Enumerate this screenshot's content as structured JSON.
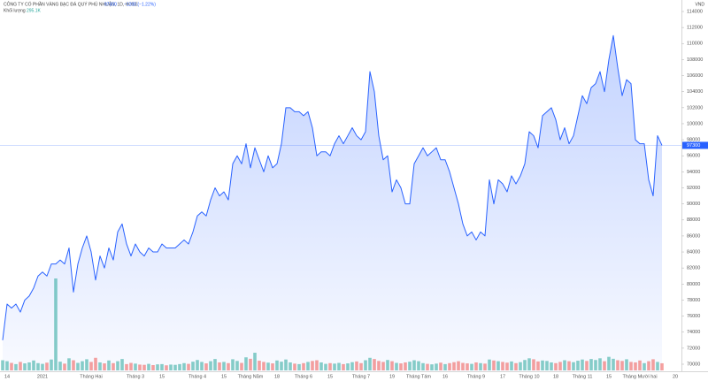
{
  "chart_data": {
    "type": "area",
    "title": "CÔNG TY CỔ PHẦN VÀNG BẠC ĐÁ QUÝ PHÚ NHUẬN, 1D, HOSE",
    "change": "−1200 (−1.22%)",
    "currency": "VND",
    "categories": [
      null,
      "14",
      null,
      null,
      null,
      null,
      null,
      null,
      null,
      "2021",
      null,
      null,
      null,
      null,
      null,
      null,
      null,
      null,
      null,
      null,
      "Tháng Hai",
      null,
      null,
      null,
      null,
      null,
      null,
      null,
      null,
      null,
      "Tháng 3",
      null,
      null,
      null,
      null,
      null,
      "15",
      null,
      null,
      null,
      null,
      null,
      null,
      null,
      "Tháng 4",
      null,
      null,
      null,
      null,
      null,
      "15",
      null,
      null,
      null,
      null,
      null,
      "Tháng Năm",
      null,
      null,
      null,
      null,
      null,
      "18",
      null,
      null,
      null,
      null,
      null,
      "Tháng 6",
      null,
      null,
      null,
      null,
      null,
      "15",
      null,
      null,
      null,
      null,
      null,
      null,
      "Tháng 7",
      null,
      null,
      null,
      null,
      null,
      null,
      "19",
      null,
      null,
      null,
      null,
      null,
      "Tháng Tám",
      null,
      null,
      null,
      null,
      null,
      "16",
      null,
      null,
      null,
      null,
      null,
      null,
      "Tháng 9",
      null,
      null,
      null,
      null,
      null,
      "17",
      null,
      null,
      null,
      null,
      null,
      "Tháng 10",
      null,
      null,
      null,
      null,
      null,
      "18",
      null,
      null,
      null,
      null,
      null,
      "Tháng 11",
      null,
      null,
      null,
      null,
      null,
      "15",
      null,
      null,
      null,
      null,
      null,
      null,
      "Tháng Mười hai",
      null,
      null,
      null,
      null,
      null,
      null,
      null,
      "20"
    ],
    "series": [
      {
        "color": "#2962ff",
        "values": [
          73000,
          77500,
          77000,
          77500,
          76500,
          78000,
          78500,
          79500,
          81000,
          81500,
          81000,
          82500,
          82500,
          83000,
          82500,
          84500,
          79000,
          82500,
          84500,
          86000,
          84000,
          80500,
          83500,
          82000,
          84500,
          83000,
          86500,
          87500,
          85000,
          83500,
          85000,
          84000,
          83500,
          84500,
          84000,
          84000,
          85000,
          84500,
          84500,
          84500,
          85000,
          85500,
          85000,
          86500,
          88500,
          89000,
          88500,
          90500,
          92000,
          91000,
          91500,
          90500,
          95000,
          96000,
          95000,
          97500,
          94500,
          97000,
          95500,
          94000,
          96000,
          94500,
          95000,
          97500,
          102000,
          102000,
          101500,
          101500,
          101000,
          101500,
          99500,
          96000,
          96500,
          96500,
          96000,
          97500,
          98500,
          97500,
          98500,
          99500,
          98500,
          98000,
          99000,
          106500,
          104000,
          98500,
          95500,
          96000,
          91500,
          93000,
          92000,
          90000,
          90000,
          95000,
          96000,
          97000,
          96000,
          96500,
          97000,
          95500,
          95500,
          94000,
          92000,
          90000,
          87500,
          86000,
          86500,
          85500,
          86500,
          86000,
          93000,
          90000,
          93000,
          92500,
          91500,
          93500,
          92500,
          93500,
          95000,
          99000,
          98500,
          97000,
          101000,
          101500,
          102000,
          100500,
          98000,
          99500,
          97500,
          98500,
          101000,
          103500,
          102500,
          104500,
          105000,
          106500,
          104000,
          108000,
          111000,
          107000,
          103500,
          105500,
          105000,
          98000,
          97500,
          97500,
          93000,
          91000,
          98500,
          97300,
          null,
          null,
          null
        ]
      }
    ],
    "volume": {
      "name": "Khối lượng",
      "current_label": "295.1K",
      "up_color": "#26a69a",
      "down_color": "#ef5350",
      "values": [
        420000,
        380000,
        310000,
        260000,
        350000,
        290000,
        330000,
        410000,
        300000,
        270000,
        320000,
        450000,
        3800000,
        360000,
        280000,
        500000,
        420000,
        310000,
        380000,
        460000,
        350000,
        520000,
        330000,
        290000,
        410000,
        300000,
        380000,
        470000,
        260000,
        310000,
        280000,
        240000,
        230000,
        270000,
        220000,
        250000,
        260000,
        210000,
        240000,
        230000,
        260000,
        300000,
        270000,
        360000,
        430000,
        350000,
        290000,
        380000,
        470000,
        330000,
        350000,
        300000,
        460000,
        390000,
        310000,
        540000,
        480000,
        730000,
        400000,
        350000,
        320000,
        290000,
        410000,
        360000,
        450000,
        330000,
        280000,
        260000,
        300000,
        350000,
        390000,
        420000,
        330000,
        270000,
        300000,
        280000,
        310000,
        260000,
        290000,
        340000,
        370000,
        300000,
        420000,
        520000,
        470000,
        390000,
        350000,
        430000,
        380000,
        310000,
        290000,
        330000,
        360000,
        420000,
        380000,
        300000,
        270000,
        250000,
        280000,
        320000,
        260000,
        300000,
        340000,
        380000,
        310000,
        290000,
        270000,
        330000,
        300000,
        280000,
        450000,
        410000,
        380000,
        350000,
        320000,
        370000,
        300000,
        340000,
        430000,
        500000,
        460000,
        370000,
        410000,
        390000,
        330000,
        300000,
        350000,
        420000,
        380000,
        340000,
        400000,
        450000,
        390000,
        470000,
        430000,
        500000,
        380000,
        560000,
        480000,
        420000,
        390000,
        460000,
        350000,
        330000,
        410000,
        300000,
        380000,
        460000,
        350000,
        295100,
        null,
        null,
        null
      ]
    },
    "ylim": [
      70000,
      114000
    ],
    "yticks": [
      70000,
      72000,
      74000,
      76000,
      78000,
      80000,
      82000,
      84000,
      86000,
      88000,
      90000,
      92000,
      94000,
      96000,
      98000,
      100000,
      102000,
      104000,
      106000,
      108000,
      110000,
      112000,
      114000
    ],
    "grid": false
  }
}
